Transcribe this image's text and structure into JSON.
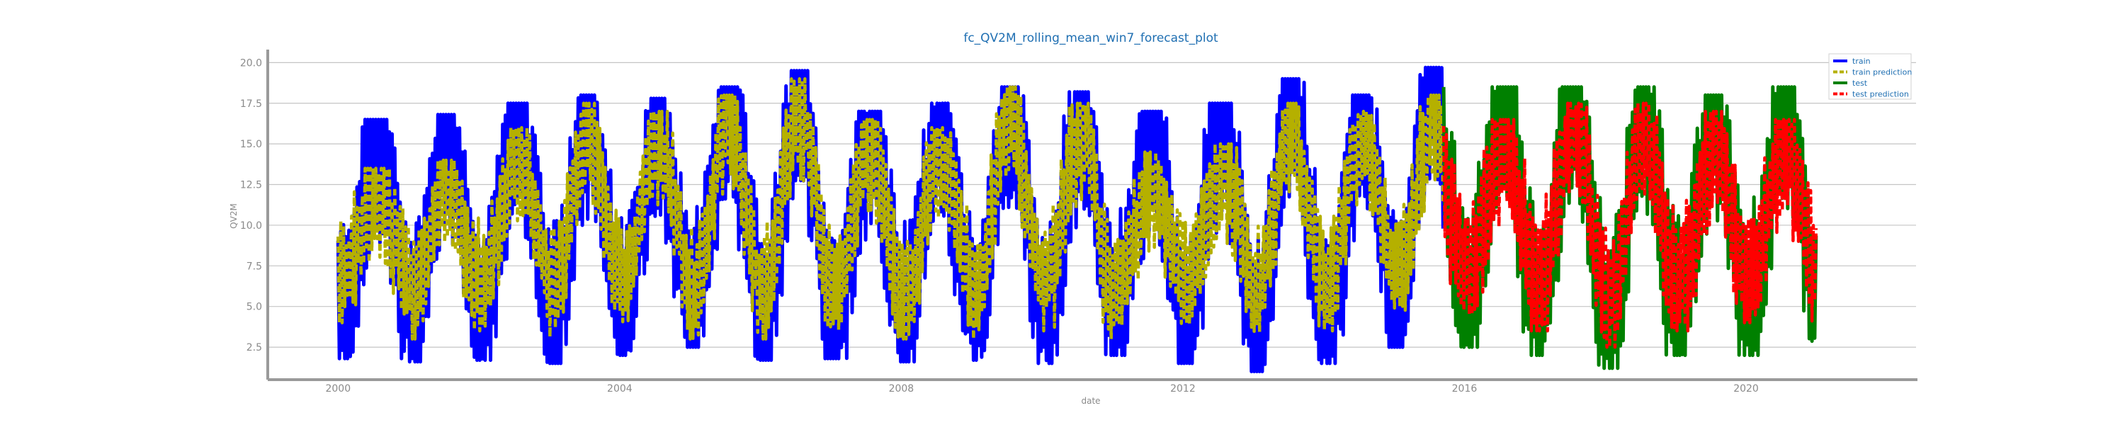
{
  "chart_data": {
    "type": "line",
    "title": "fc_QV2M_rolling_mean_win7_forecast_plot",
    "xlabel": "date",
    "ylabel": "QV2M",
    "xlim": [
      "1999-01-01",
      "2022-06-01"
    ],
    "ylim": [
      0.5,
      20.8
    ],
    "x_ticks": [
      "2000",
      "2004",
      "2008",
      "2012",
      "2016",
      "2020"
    ],
    "y_ticks": [
      "2.5",
      "5.0",
      "7.5",
      "10.0",
      "12.5",
      "15.0",
      "17.5",
      "20.0"
    ],
    "grid": "horizontal",
    "legend_position": "top-right",
    "series": [
      {
        "name": "train",
        "color": "#0000ff",
        "style": "solid",
        "x_start": "2000-01-01",
        "x_end": "2015-09-15",
        "approx_peaks": [
          16.5,
          16.8,
          17.5,
          18.0,
          17.8,
          18.5,
          19.5,
          17.0,
          17.5,
          18.5,
          18.2,
          17.0,
          17.5,
          19.0,
          18.0,
          19.7
        ],
        "approx_troughs": [
          1.8,
          1.6,
          1.7,
          1.5,
          2.0,
          2.5,
          1.7,
          1.8,
          1.6,
          1.7,
          1.5,
          2.0,
          1.5,
          1.0,
          1.5,
          2.5
        ]
      },
      {
        "name": "train prediction",
        "color": "#b5b000",
        "style": "dashed",
        "x_start": "2000-01-01",
        "x_end": "2015-09-15",
        "approx_peaks": [
          13.5,
          14.0,
          16.0,
          17.5,
          17.0,
          18.0,
          19.0,
          16.5,
          16.0,
          18.5,
          17.5,
          14.5,
          15.0,
          17.5,
          17.0,
          18.0
        ],
        "approx_troughs": [
          4.0,
          3.0,
          3.5,
          3.0,
          3.5,
          3.0,
          3.0,
          3.0,
          3.0,
          3.0,
          3.5,
          3.0,
          3.5,
          3.0,
          3.5,
          4.0
        ]
      },
      {
        "name": "test",
        "color": "#008000",
        "style": "solid",
        "x_start": "2015-09-15",
        "x_end": "2020-12-31",
        "approx_peaks": [
          18.5,
          18.5,
          18.5,
          18.0,
          18.5
        ],
        "approx_troughs": [
          2.5,
          2.0,
          1.2,
          2.0,
          2.0
        ]
      },
      {
        "name": "test prediction",
        "color": "#ff0000",
        "style": "dashed",
        "x_start": "2015-09-15",
        "x_end": "2020-12-31",
        "approx_peaks": [
          16.5,
          17.5,
          17.5,
          17.0,
          16.5
        ],
        "approx_troughs": [
          4.5,
          3.5,
          2.5,
          3.5,
          4.0
        ]
      }
    ]
  }
}
